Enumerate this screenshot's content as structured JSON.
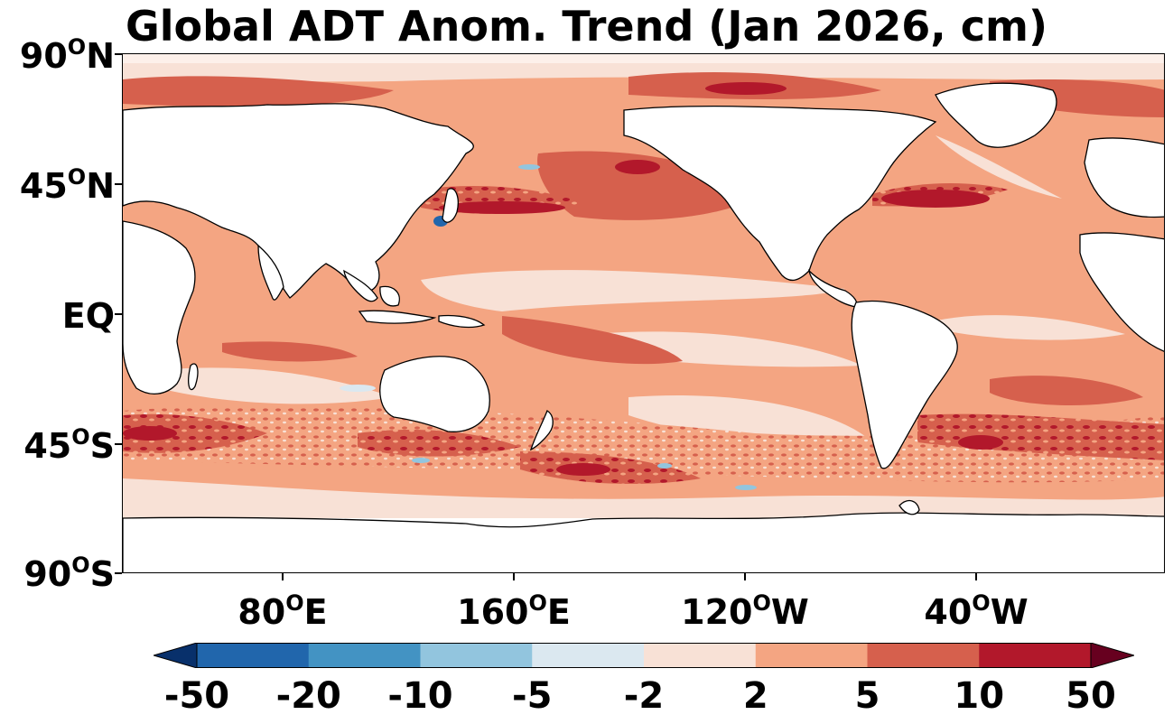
{
  "title": "Global ADT Anom. Trend (Jan 2026, cm)",
  "y_axis": {
    "ticks": [
      {
        "label": "90",
        "suffix": "N"
      },
      {
        "label": "45",
        "suffix": "N"
      },
      {
        "label": "EQ",
        "suffix": ""
      },
      {
        "label": "45",
        "suffix": "S"
      },
      {
        "label": "90",
        "suffix": "S"
      }
    ],
    "degree_symbol": "O"
  },
  "x_axis": {
    "ticks": [
      {
        "label": "80",
        "suffix": "E"
      },
      {
        "label": "160",
        "suffix": "E"
      },
      {
        "label": "120",
        "suffix": "W"
      },
      {
        "label": "40",
        "suffix": "W"
      }
    ],
    "degree_symbol": "O"
  },
  "colorbar": {
    "labels": [
      "-50",
      "-20",
      "-10",
      "-5",
      "-2",
      "2",
      "5",
      "10",
      "50"
    ],
    "colors": [
      "#08306b",
      "#2166ac",
      "#4393c3",
      "#92c5de",
      "#dbe8f0",
      "#f8e1d6",
      "#f4a582",
      "#d6604d",
      "#b2182b",
      "#67001f"
    ]
  },
  "field_colors": {
    "land": "#ffffff",
    "weak_pos": "#f8e1d6",
    "mid_pos": "#f4a582",
    "strong_pos": "#d6604d",
    "very_strong_pos": "#b2182b",
    "weak_neg": "#dbe8f0",
    "mid_neg": "#92c5de",
    "strong_neg": "#2166ac",
    "coastline": "#000000"
  }
}
